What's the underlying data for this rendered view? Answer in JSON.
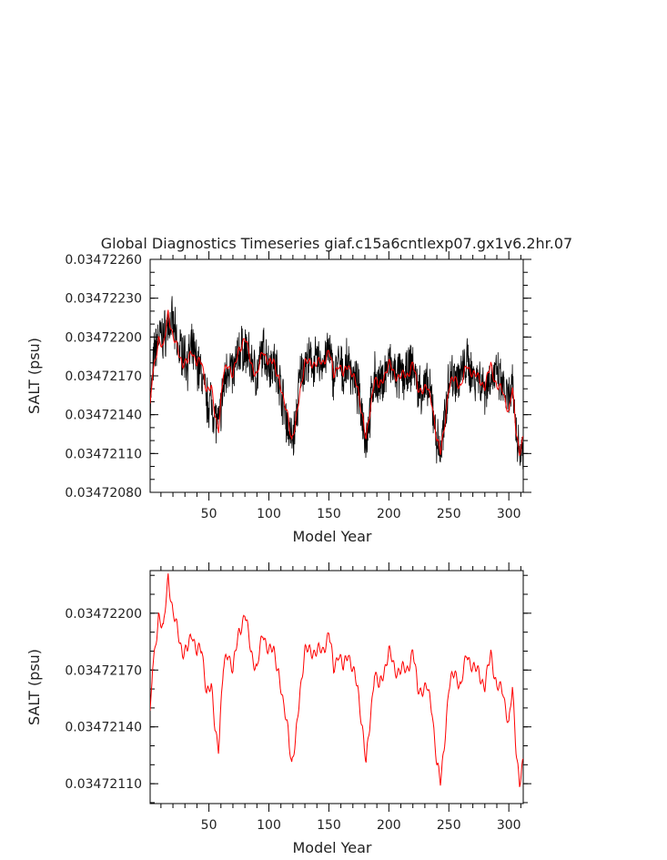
{
  "title": "Global Diagnostics Timeseries giaf.c15a6cntlexp07.gx1v6.2hr.07",
  "colors": {
    "raw": "#000000",
    "smoothed": "#ff0000",
    "axes": "#000000"
  },
  "chart_data": [
    {
      "type": "line",
      "xlabel": "Model Year",
      "ylabel": "SALT (psu)",
      "xlim": [
        1,
        312
      ],
      "ylim": [
        0.0347208,
        0.0347226
      ],
      "xticks": [
        "50",
        "100",
        "150",
        "200",
        "250",
        "300"
      ],
      "xtick_values": [
        50,
        100,
        150,
        200,
        250,
        300
      ],
      "yticks": [
        "0.03472080",
        "0.03472110",
        "0.03472140",
        "0.03472170",
        "0.03472200",
        "0.03472230",
        "0.03472260"
      ],
      "ytick_values": [
        0.0347208,
        0.0347211,
        0.0347214,
        0.0347217,
        0.034722,
        0.0347223,
        0.0347226
      ],
      "series": [
        {
          "style": "raw-noisy",
          "color": "#000000",
          "x": [
            1,
            3,
            5,
            8,
            12,
            16,
            20,
            24,
            28,
            32,
            36,
            40,
            44,
            48,
            52,
            55,
            58,
            62,
            66,
            70,
            75,
            80,
            85,
            90,
            95,
            100,
            104,
            108,
            112,
            116,
            119,
            122,
            126,
            130,
            135,
            140,
            145,
            150,
            154,
            158,
            162,
            166,
            170,
            174,
            178,
            181,
            184,
            188,
            192,
            196,
            200,
            205,
            210,
            215,
            220,
            224,
            228,
            232,
            236,
            240,
            243,
            246,
            250,
            255,
            260,
            265,
            270,
            275,
            280,
            285,
            290,
            295,
            300,
            303,
            306,
            309,
            312
          ],
          "y": [
            0.03472145,
            0.0347217,
            0.0347219,
            0.034722,
            0.034722,
            0.0347221,
            0.0347221,
            0.0347219,
            0.0347219,
            0.0347218,
            0.0347219,
            0.0347218,
            0.0347217,
            0.0347215,
            0.0347215,
            0.0347214,
            0.0347213,
            0.0347216,
            0.0347218,
            0.0347217,
            0.0347219,
            0.0347219,
            0.0347218,
            0.0347217,
            0.0347219,
            0.0347218,
            0.0347218,
            0.0347217,
            0.0347215,
            0.0347213,
            0.0347212,
            0.0347213,
            0.0347217,
            0.0347218,
            0.0347218,
            0.0347218,
            0.0347218,
            0.0347219,
            0.0347217,
            0.0347218,
            0.0347217,
            0.0347218,
            0.0347217,
            0.0347216,
            0.0347214,
            0.0347212,
            0.0347214,
            0.0347217,
            0.0347216,
            0.0347217,
            0.0347218,
            0.0347217,
            0.0347217,
            0.0347217,
            0.0347218,
            0.0347216,
            0.0347216,
            0.0347216,
            0.0347215,
            0.0347212,
            0.0347211,
            0.0347213,
            0.0347217,
            0.0347217,
            0.0347217,
            0.0347218,
            0.0347217,
            0.0347217,
            0.0347216,
            0.0347217,
            0.0347217,
            0.0347216,
            0.0347215,
            0.0347216,
            0.0347213,
            0.0347211,
            0.0347212
          ]
        },
        {
          "style": "smoothed",
          "color": "#ff0000",
          "x": [
            1,
            3,
            5,
            8,
            12,
            16,
            20,
            24,
            28,
            32,
            36,
            40,
            44,
            48,
            52,
            55,
            58,
            62,
            66,
            70,
            75,
            80,
            85,
            90,
            95,
            100,
            104,
            108,
            112,
            116,
            119,
            122,
            126,
            130,
            135,
            140,
            145,
            150,
            154,
            158,
            162,
            166,
            170,
            174,
            178,
            181,
            184,
            188,
            192,
            196,
            200,
            205,
            210,
            215,
            220,
            224,
            228,
            232,
            236,
            240,
            243,
            246,
            250,
            255,
            260,
            265,
            270,
            275,
            280,
            285,
            290,
            295,
            300,
            303,
            306,
            309,
            312
          ],
          "y": [
            0.03472145,
            0.0347217,
            0.0347218,
            0.034722,
            0.0347219,
            0.0347222,
            0.034722,
            0.0347219,
            0.0347218,
            0.0347218,
            0.0347219,
            0.0347218,
            0.0347218,
            0.0347216,
            0.0347216,
            0.0347214,
            0.0347213,
            0.0347217,
            0.0347218,
            0.0347217,
            0.0347219,
            0.034722,
            0.0347218,
            0.0347217,
            0.0347219,
            0.0347218,
            0.0347218,
            0.0347217,
            0.0347215,
            0.0347214,
            0.0347212,
            0.0347213,
            0.0347216,
            0.0347218,
            0.0347218,
            0.0347218,
            0.0347218,
            0.0347219,
            0.0347217,
            0.0347218,
            0.0347217,
            0.0347218,
            0.0347217,
            0.0347216,
            0.0347214,
            0.0347212,
            0.0347214,
            0.0347217,
            0.0347216,
            0.0347217,
            0.0347218,
            0.0347217,
            0.0347217,
            0.0347217,
            0.0347218,
            0.0347216,
            0.0347216,
            0.0347216,
            0.0347215,
            0.0347212,
            0.0347211,
            0.0347213,
            0.0347216,
            0.0347217,
            0.0347216,
            0.0347218,
            0.0347217,
            0.0347217,
            0.0347216,
            0.0347218,
            0.0347216,
            0.0347216,
            0.0347214,
            0.0347216,
            0.0347213,
            0.0347211,
            0.0347212
          ]
        }
      ]
    },
    {
      "type": "line",
      "xlabel": "Model Year",
      "ylabel": "SALT (psu)",
      "xlim": [
        1,
        312
      ],
      "ylim": [
        0.034720995,
        0.034722225
      ],
      "xticks": [
        "50",
        "100",
        "150",
        "200",
        "250",
        "300"
      ],
      "xtick_values": [
        50,
        100,
        150,
        200,
        250,
        300
      ],
      "yticks": [
        "0.03472110",
        "0.03472140",
        "0.03472170",
        "0.03472200"
      ],
      "ytick_values": [
        0.0347211,
        0.0347214,
        0.0347217,
        0.034722
      ],
      "series": [
        {
          "style": "smoothed",
          "color": "#ff0000",
          "x": [
            1,
            3,
            5,
            8,
            12,
            16,
            20,
            24,
            28,
            32,
            36,
            40,
            44,
            48,
            52,
            55,
            58,
            62,
            66,
            70,
            75,
            80,
            85,
            90,
            95,
            100,
            104,
            108,
            112,
            116,
            119,
            122,
            126,
            130,
            135,
            140,
            145,
            150,
            154,
            158,
            162,
            166,
            170,
            174,
            178,
            181,
            184,
            188,
            192,
            196,
            200,
            205,
            210,
            215,
            220,
            224,
            228,
            232,
            236,
            240,
            243,
            246,
            250,
            255,
            260,
            265,
            270,
            275,
            280,
            285,
            290,
            295,
            300,
            303,
            306,
            309,
            312
          ],
          "y": [
            0.03472145,
            0.0347217,
            0.0347218,
            0.034722,
            0.0347219,
            0.0347222,
            0.034722,
            0.0347219,
            0.0347218,
            0.0347218,
            0.0347219,
            0.0347218,
            0.0347218,
            0.0347216,
            0.0347216,
            0.0347214,
            0.0347213,
            0.0347217,
            0.0347218,
            0.0347217,
            0.0347219,
            0.034722,
            0.0347218,
            0.0347217,
            0.0347219,
            0.0347218,
            0.0347218,
            0.0347217,
            0.0347215,
            0.0347214,
            0.0347212,
            0.0347213,
            0.0347216,
            0.0347218,
            0.0347218,
            0.0347218,
            0.0347218,
            0.0347219,
            0.0347217,
            0.0347218,
            0.0347217,
            0.0347218,
            0.0347217,
            0.0347216,
            0.0347214,
            0.0347212,
            0.0347214,
            0.0347217,
            0.0347216,
            0.0347217,
            0.0347218,
            0.0347217,
            0.0347217,
            0.0347217,
            0.0347218,
            0.0347216,
            0.0347216,
            0.0347216,
            0.0347215,
            0.0347212,
            0.0347211,
            0.0347213,
            0.0347216,
            0.0347217,
            0.0347216,
            0.0347218,
            0.0347217,
            0.0347217,
            0.0347216,
            0.0347218,
            0.0347216,
            0.0347216,
            0.0347214,
            0.0347216,
            0.0347213,
            0.0347211,
            0.0347212
          ]
        }
      ]
    }
  ]
}
